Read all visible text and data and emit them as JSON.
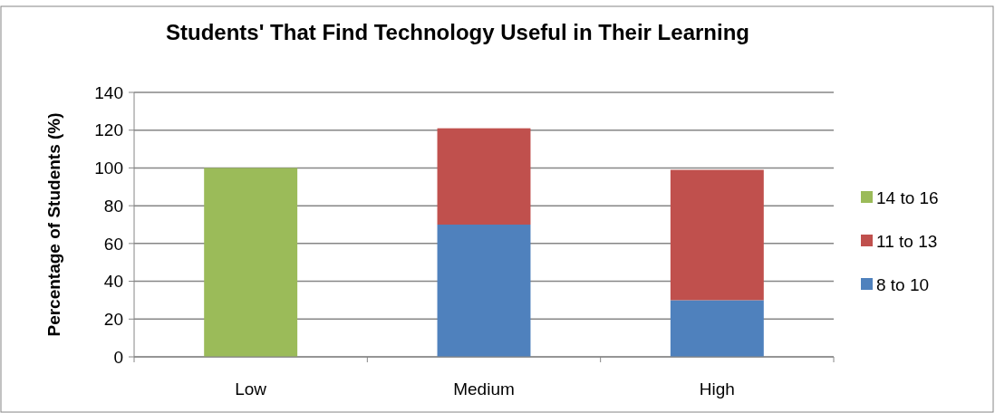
{
  "chart_data": {
    "type": "bar",
    "title": "Students' That Find Technology Useful in Their Learning",
    "ylabel": "Percentage of Students (%)",
    "categories": [
      "Low",
      "Medium",
      "High"
    ],
    "stacked": true,
    "series": [
      {
        "name": "8 to 10",
        "color": "#4f81bd",
        "values": [
          0,
          70,
          30
        ]
      },
      {
        "name": "11 to 13",
        "color": "#c0504d",
        "values": [
          0,
          51,
          69
        ]
      },
      {
        "name": "14 to 16",
        "color": "#9bbb59",
        "values": [
          100,
          0,
          0
        ]
      }
    ],
    "ylim": [
      0,
      140
    ],
    "yticks": [
      0,
      20,
      40,
      60,
      80,
      100,
      120,
      140
    ],
    "grid": "y",
    "legend": "right"
  }
}
